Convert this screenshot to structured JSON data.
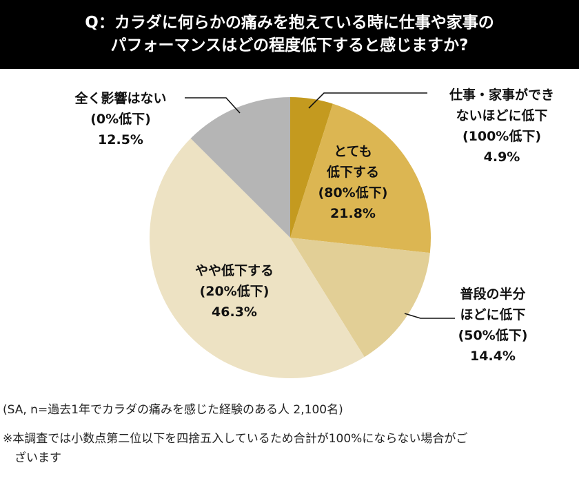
{
  "title": {
    "line1": "Q：カラダに何らかの痛みを抱えている時に仕事や家事の",
    "line2": "パフォーマンスはどの程度低下すると感じますか?"
  },
  "chart_data": {
    "type": "pie",
    "slices": [
      {
        "lines": [
          "仕事・家事ができ",
          "ないほどに低下",
          "(100%低下)"
        ],
        "value_label": "4.9%",
        "value": 4.9,
        "color": "#c49a1f"
      },
      {
        "lines": [
          "とても",
          "低下する",
          "(80%低下)"
        ],
        "value_label": "21.8%",
        "value": 21.8,
        "color": "#dcb652"
      },
      {
        "lines": [
          "普段の半分",
          "ほどに低下",
          "(50%低下)"
        ],
        "value_label": "14.4%",
        "value": 14.4,
        "color": "#e2cf96"
      },
      {
        "lines": [
          "やや低下する",
          "(20%低下)"
        ],
        "value_label": "46.3%",
        "value": 46.3,
        "color": "#ede2c3"
      },
      {
        "lines": [
          "全く影響はない",
          "(0%低下)"
        ],
        "value_label": "12.5%",
        "value": 12.5,
        "color": "#b5b5b5"
      }
    ]
  },
  "notes": {
    "sample": "(SA, n=過去1年でカラダの痛みを感じた経験のある人 2,100名)",
    "rounding_line1": "※本調査では小数点第二位以下を四捨五入しているため合計が100%にならない場合がご",
    "rounding_line2": "　ざいます"
  }
}
